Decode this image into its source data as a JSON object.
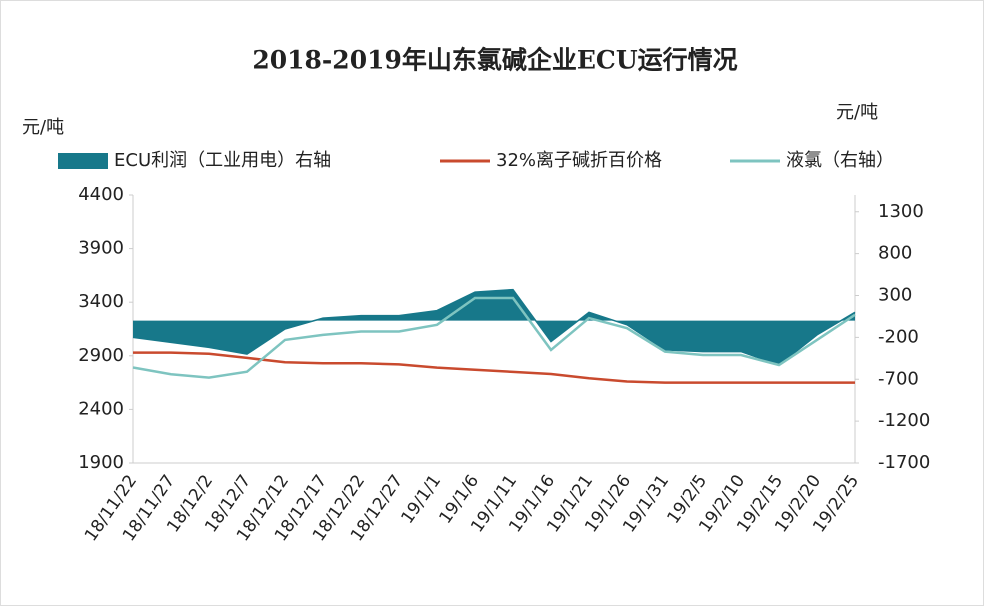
{
  "chart_data": {
    "type": "line",
    "title": "2018-2019年山东氯碱企业ECU运行情况",
    "y_label": "元/吨",
    "y2_label": "元/吨",
    "categories": [
      "18/11/22",
      "18/11/27",
      "18/12/2",
      "18/12/7",
      "18/12/12",
      "18/12/17",
      "18/12/22",
      "18/12/27",
      "19/1/1",
      "19/1/6",
      "19/1/11",
      "19/1/16",
      "19/1/21",
      "19/1/26",
      "19/1/31",
      "19/2/5",
      "19/2/10",
      "19/2/15",
      "19/2/20",
      "19/2/25"
    ],
    "series": [
      {
        "name": "ECU利润（工业用电）右轴",
        "color": "#17788a",
        "axis": "y2",
        "fill": true,
        "values": [
          -200,
          -260,
          -320,
          -400,
          -100,
          30,
          60,
          60,
          120,
          340,
          370,
          -250,
          100,
          -50,
          -350,
          -370,
          -370,
          -530,
          -170,
          100
        ]
      },
      {
        "name": "32%离子碱折百价格",
        "color": "#c94a2e",
        "values": [
          2930,
          2930,
          2920,
          2880,
          2840,
          2830,
          2830,
          2820,
          2790,
          2770,
          2750,
          2730,
          2690,
          2660,
          2650,
          2650,
          2650,
          2650,
          2650,
          2650
        ]
      },
      {
        "name": "液氯（右轴）",
        "color": "#7ec4c0",
        "axis": "y2",
        "values": [
          -560,
          -640,
          -680,
          -610,
          -230,
          -170,
          -130,
          -130,
          -50,
          270,
          270,
          -350,
          30,
          -90,
          -370,
          -410,
          -410,
          -530,
          -230,
          70
        ]
      }
    ],
    "ylim": [
      1900,
      4400
    ],
    "yticks": [
      1900,
      2400,
      2900,
      3400,
      3900,
      4400
    ],
    "y2lim": [
      -1700,
      1500
    ],
    "y2ticks": [
      -1700,
      -1200,
      -700,
      -200,
      300,
      800,
      1300
    ],
    "grid": false
  }
}
